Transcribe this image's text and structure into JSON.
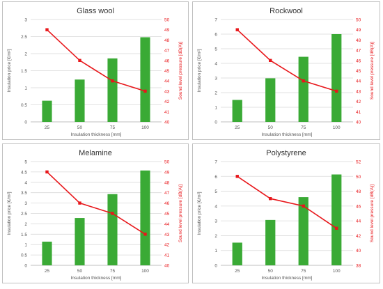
{
  "colors": {
    "bar": "#3aaa35",
    "line": "#e8171b",
    "left_axis_text": "#555555",
    "right_axis_text": "#e8171b",
    "grid": "#d9d9d9",
    "panel_border": "#bfbfbf",
    "title": "#333333"
  },
  "chart_data": [
    {
      "type": "bar",
      "title": "Glass wool",
      "xlabel": "Insulation thickness [mm]",
      "ylabel": "Insulation price [€/m²]",
      "y2label": "Sound level pressure [dB(A)]",
      "categories": [
        "25",
        "50",
        "75",
        "100"
      ],
      "ylim": [
        0,
        3
      ],
      "yticks": [
        "0",
        "0.5",
        "1",
        "1.5",
        "2",
        "2.5",
        "3"
      ],
      "y2lim": [
        40,
        50
      ],
      "y2ticks": [
        "40",
        "41",
        "42",
        "43",
        "44",
        "45",
        "46",
        "47",
        "48",
        "49",
        "50"
      ],
      "grid": true,
      "series": [
        {
          "type": "bar",
          "axis": "left",
          "values": [
            0.62,
            1.24,
            1.86,
            2.48
          ]
        },
        {
          "type": "line",
          "axis": "right",
          "values": [
            49,
            46,
            44,
            43
          ]
        }
      ]
    },
    {
      "type": "bar",
      "title": "Rockwool",
      "xlabel": "Insulation thickness [mm]",
      "ylabel": "Insulation price [€/m²]",
      "y2label": "Sound level pressure [dB(A)]",
      "categories": [
        "25",
        "50",
        "75",
        "100"
      ],
      "ylim": [
        0,
        7
      ],
      "yticks": [
        "0",
        "1",
        "2",
        "3",
        "4",
        "5",
        "6",
        "7"
      ],
      "y2lim": [
        40,
        50
      ],
      "y2ticks": [
        "40",
        "41",
        "42",
        "43",
        "44",
        "45",
        "46",
        "47",
        "48",
        "49",
        "50"
      ],
      "grid": true,
      "series": [
        {
          "type": "bar",
          "axis": "left",
          "values": [
            1.5,
            2.98,
            4.45,
            6.0
          ]
        },
        {
          "type": "line",
          "axis": "right",
          "values": [
            49,
            46,
            44,
            43
          ]
        }
      ]
    },
    {
      "type": "bar",
      "title": "Melamine",
      "xlabel": "Insulation thickness [mm]",
      "ylabel": "Insulation price [€/m²]",
      "y2label": "Sound level pressure [dB(A)]",
      "categories": [
        "25",
        "50",
        "75",
        "100"
      ],
      "ylim": [
        0,
        5
      ],
      "yticks": [
        "0",
        "0.5",
        "1",
        "1.5",
        "2",
        "2.5",
        "3",
        "3.5",
        "4",
        "4.5",
        "5"
      ],
      "y2lim": [
        40,
        50
      ],
      "y2ticks": [
        "40",
        "41",
        "42",
        "43",
        "44",
        "45",
        "46",
        "47",
        "48",
        "49",
        "50"
      ],
      "grid": true,
      "series": [
        {
          "type": "bar",
          "axis": "left",
          "values": [
            1.14,
            2.28,
            3.43,
            4.57
          ]
        },
        {
          "type": "line",
          "axis": "right",
          "values": [
            49,
            46,
            45,
            43
          ]
        }
      ]
    },
    {
      "type": "bar",
      "title": "Polystyrene",
      "xlabel": "Insulation thickness [mm]",
      "ylabel": "Insulation price [€/m²]",
      "y2label": "Sound level pressure [dB(A)]",
      "categories": [
        "25",
        "50",
        "75",
        "100"
      ],
      "ylim": [
        0,
        7
      ],
      "yticks": [
        "0",
        "1",
        "2",
        "3",
        "4",
        "5",
        "6",
        "7"
      ],
      "y2lim": [
        38,
        52
      ],
      "y2ticks": [
        "38",
        "40",
        "42",
        "44",
        "46",
        "48",
        "50",
        "52"
      ],
      "grid": true,
      "series": [
        {
          "type": "bar",
          "axis": "left",
          "values": [
            1.53,
            3.06,
            4.6,
            6.13
          ]
        },
        {
          "type": "line",
          "axis": "right",
          "values": [
            50,
            47,
            46,
            43
          ]
        }
      ]
    }
  ]
}
